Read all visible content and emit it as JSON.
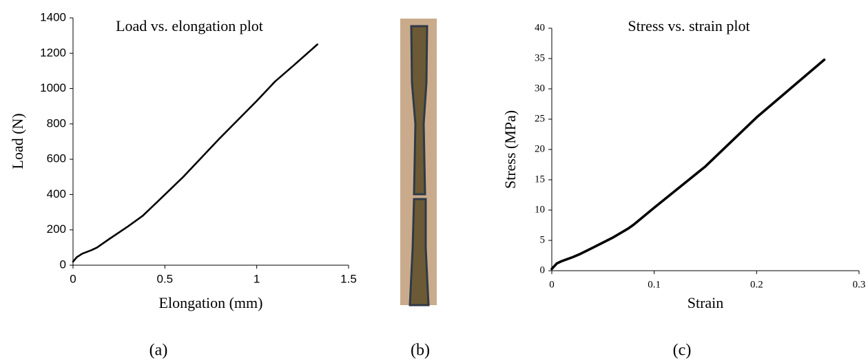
{
  "chart_data": [
    {
      "type": "line",
      "title": "Load vs. elongation plot",
      "xlabel": "Elongation (mm)",
      "ylabel": "Load (N)",
      "x": [
        0,
        0.02,
        0.05,
        0.1,
        0.13,
        0.2,
        0.3,
        0.38,
        0.45,
        0.6,
        0.8,
        1.0,
        1.1,
        1.2,
        1.33
      ],
      "values": [
        20,
        45,
        65,
        85,
        100,
        150,
        220,
        280,
        350,
        500,
        720,
        930,
        1040,
        1130,
        1250
      ],
      "color": "#000000",
      "xlim": [
        0,
        1.5
      ],
      "xticks": [
        0,
        0.5,
        1,
        1.5
      ],
      "ylim": [
        0,
        1400
      ],
      "yticks": [
        0,
        200,
        400,
        600,
        800,
        1000,
        1200,
        1400
      ]
    },
    {
      "type": "line",
      "title": "Stress vs. strain plot",
      "xlabel": "Strain",
      "ylabel": "Stress (MPa)",
      "x": [
        0,
        0.005,
        0.01,
        0.02,
        0.027,
        0.04,
        0.06,
        0.075,
        0.08,
        0.1,
        0.15,
        0.2,
        0.25,
        0.266
      ],
      "values": [
        0.3,
        1.2,
        1.6,
        2.2,
        2.7,
        3.8,
        5.5,
        7,
        7.6,
        10.4,
        17.2,
        25.3,
        32.5,
        34.8
      ],
      "color": "#000000",
      "xlim": [
        0,
        0.3
      ],
      "xticks": [
        0,
        0.1,
        0.2,
        0.3
      ],
      "ylim": [
        0,
        40
      ],
      "yticks": [
        0,
        5,
        10,
        15,
        20,
        25,
        30,
        35,
        40
      ]
    }
  ],
  "panels": [
    "(a)",
    "(b)",
    "(c)"
  ]
}
